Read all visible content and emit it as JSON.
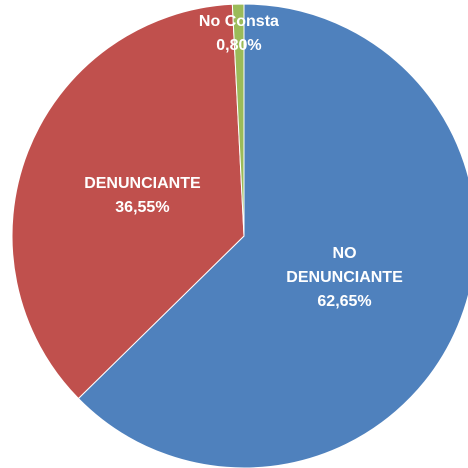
{
  "chart_data": {
    "type": "pie",
    "categories": [
      "NO DENUNCIANTE",
      "DENUNCIANTE",
      "No Consta"
    ],
    "values": [
      62.65,
      36.55,
      0.8
    ],
    "value_labels": [
      "62,65%",
      "36,55%",
      "0,80%"
    ],
    "colors": [
      "#4f81bd",
      "#c0504d",
      "#9bbb59"
    ]
  }
}
